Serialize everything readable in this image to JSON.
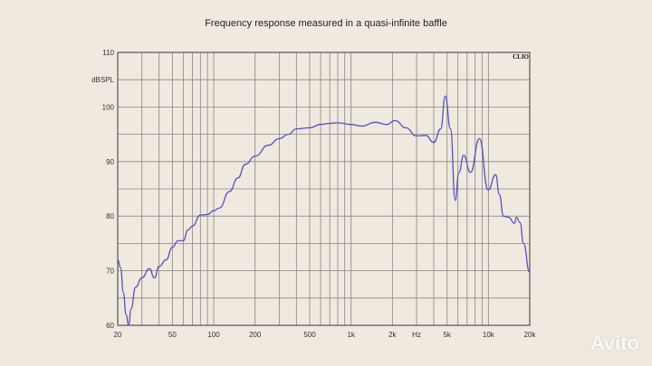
{
  "chart_data": {
    "type": "line",
    "title": "Frequency response measured in a quasi-infinite baffle",
    "xlabel": "Hz",
    "ylabel": "dBSPL",
    "xscale": "log",
    "xlim": [
      20,
      20000
    ],
    "ylim": [
      60,
      110
    ],
    "grid": true,
    "brand": "CLIO",
    "x_ticks": [
      {
        "v": 20,
        "label": "20"
      },
      {
        "v": 50,
        "label": "50"
      },
      {
        "v": 100,
        "label": "100"
      },
      {
        "v": 200,
        "label": "200"
      },
      {
        "v": 500,
        "label": "500"
      },
      {
        "v": 1000,
        "label": "1k"
      },
      {
        "v": 2000,
        "label": "2k"
      },
      {
        "v": 3000,
        "label": "Hz"
      },
      {
        "v": 5000,
        "label": "5k"
      },
      {
        "v": 10000,
        "label": "10k"
      },
      {
        "v": 20000,
        "label": "20k"
      }
    ],
    "y_ticks": [
      60,
      70,
      80,
      90,
      100,
      110
    ],
    "series": [
      {
        "name": "Frequency response",
        "color": "#5553c0",
        "x": [
          20,
          21,
          22,
          23,
          24,
          25,
          27,
          30,
          34,
          37,
          40,
          45,
          50,
          55,
          60,
          65,
          70,
          80,
          90,
          100,
          110,
          130,
          150,
          170,
          200,
          250,
          300,
          350,
          400,
          500,
          600,
          700,
          800,
          1000,
          1200,
          1500,
          1800,
          2100,
          2500,
          3000,
          3500,
          4000,
          4500,
          4850,
          5300,
          5730,
          6100,
          6600,
          7400,
          8600,
          9960,
          11300,
          12000,
          12900,
          14000,
          15500,
          16000,
          17000,
          18000,
          20000
        ],
        "y": [
          72,
          70.5,
          66,
          62,
          60,
          63,
          67,
          68.7,
          70.4,
          68.7,
          70.8,
          72,
          74.3,
          75.5,
          75.5,
          77.5,
          78.2,
          80.2,
          80.3,
          81,
          81.5,
          84.5,
          87,
          89.5,
          91,
          93,
          94.2,
          95,
          96,
          96.2,
          96.8,
          97,
          97.1,
          96.8,
          96.5,
          97.2,
          96.8,
          97.5,
          96.2,
          94.7,
          94.8,
          93.5,
          96,
          102,
          96,
          82.9,
          88,
          91.2,
          88,
          94.2,
          84.8,
          87.6,
          84,
          80,
          79.8,
          78.7,
          79.8,
          78.8,
          75,
          69.7
        ]
      }
    ]
  },
  "watermark": "Avito"
}
